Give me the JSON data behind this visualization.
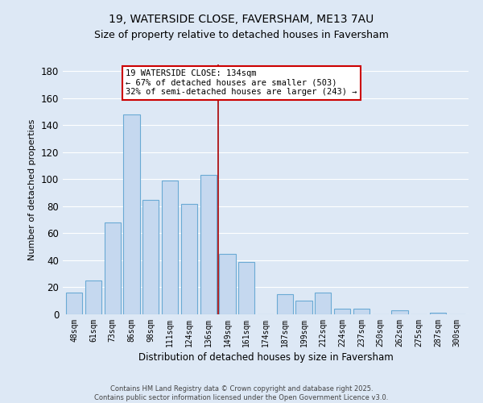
{
  "title1": "19, WATERSIDE CLOSE, FAVERSHAM, ME13 7AU",
  "title2": "Size of property relative to detached houses in Faversham",
  "xlabel": "Distribution of detached houses by size in Faversham",
  "ylabel": "Number of detached properties",
  "bar_labels": [
    "48sqm",
    "61sqm",
    "73sqm",
    "86sqm",
    "98sqm",
    "111sqm",
    "124sqm",
    "136sqm",
    "149sqm",
    "161sqm",
    "174sqm",
    "187sqm",
    "199sqm",
    "212sqm",
    "224sqm",
    "237sqm",
    "250sqm",
    "262sqm",
    "275sqm",
    "287sqm",
    "300sqm"
  ],
  "bar_values": [
    16,
    25,
    68,
    148,
    85,
    99,
    82,
    103,
    45,
    39,
    0,
    15,
    10,
    16,
    4,
    4,
    0,
    3,
    0,
    1,
    0
  ],
  "bar_color": "#c5d8ef",
  "bar_edge_color": "#6aaad4",
  "background_color": "#dde8f5",
  "grid_color": "#ffffff",
  "ylim": [
    0,
    185
  ],
  "yticks": [
    0,
    20,
    40,
    60,
    80,
    100,
    120,
    140,
    160,
    180
  ],
  "vline_x": 7.5,
  "vline_color": "#aa0000",
  "annotation_title": "19 WATERSIDE CLOSE: 134sqm",
  "annotation_line1": "← 67% of detached houses are smaller (503)",
  "annotation_line2": "32% of semi-detached houses are larger (243) →",
  "annotation_box_color": "#ffffff",
  "annotation_border_color": "#cc0000",
  "footer1": "Contains HM Land Registry data © Crown copyright and database right 2025.",
  "footer2": "Contains public sector information licensed under the Open Government Licence v3.0."
}
